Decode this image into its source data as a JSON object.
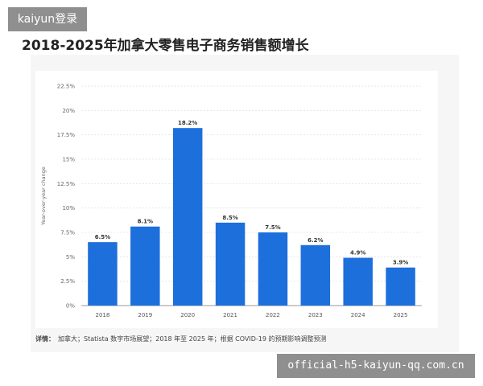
{
  "watermark_top": "kaiyun登录",
  "watermark_bottom": "official-h5-kaiyun-qq.com.cn",
  "chart_data": {
    "type": "bar",
    "title": "2018-2025年加拿大零售电子商务销售额增长",
    "ylabel": "Year-over-year change",
    "xlabel": "",
    "categories": [
      "2018",
      "2019",
      "2020",
      "2021",
      "2022",
      "2023",
      "2024",
      "2025"
    ],
    "values": [
      6.5,
      8.1,
      18.2,
      8.5,
      7.5,
      6.2,
      4.9,
      3.9
    ],
    "value_labels": [
      "6.5%",
      "8.1%",
      "18.2%",
      "8.5%",
      "7.5%",
      "6.2%",
      "4.9%",
      "3.9%"
    ],
    "ylim": [
      0,
      22.5
    ],
    "yticks": [
      "0%",
      "2.5%",
      "5%",
      "7.5%",
      "10%",
      "12.5%",
      "15%",
      "17.5%",
      "20%",
      "22.5%"
    ],
    "grid": true,
    "bar_color": "#1d6fdc"
  },
  "footnote": {
    "label": "详情：",
    "text": "加拿大；Statista 数字市场展望；2018 年至 2025 年；根据 COVID-19 的预期影响调整预测"
  }
}
